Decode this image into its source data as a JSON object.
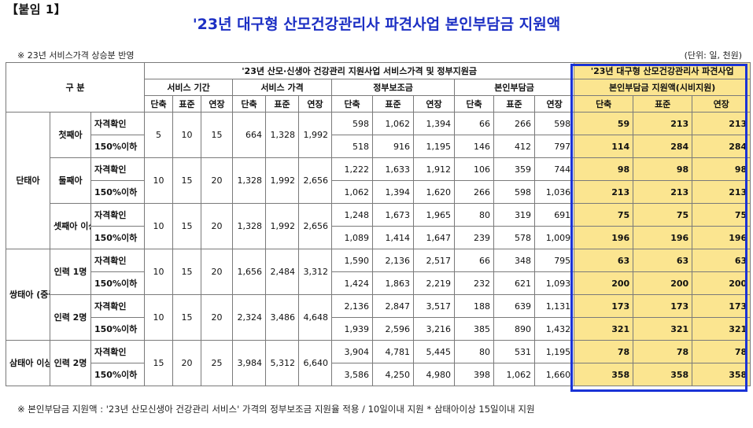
{
  "doc": {
    "attachment_label": "【붙임 1】",
    "title": "'23년 대구형 산모건강관리사 파견사업 본인부담금 지원액",
    "note_top": "※ 23년 서비스가격 상승분 반영",
    "unit": "(단위: 일, 천원)",
    "footer": "※ 본인부담금 지원액 : '23년 산모신생아 건강관리 서비스' 가격의 정부보조금 지원율 적용 / 10일이내 지원  * 삼태아이상 15일이내 지원"
  },
  "header": {
    "category": "구 분",
    "group_title": "'23년 산모·신생아 건강관리 지원사업 서비스가격 및 정부지원금",
    "support_title_line1": "'23년 대구형 산모건강관리사 파견사업",
    "support_title_line2": "본인부담금 지원액(시비지원)",
    "service_period": "서비스 기간",
    "service_price": "서비스 가격",
    "gov_subsidy": "정부보조금",
    "self_pay": "본인부담금",
    "short": "단축",
    "standard": "표준",
    "extended": "연장"
  },
  "labels": {
    "single": "단태아",
    "first": "첫째아",
    "second": "둘째아",
    "third": "셋째아 이상",
    "twin": "쌍태아 (중증+ 단태아)",
    "workers1": "인력 1명",
    "workers2": "인력 2명",
    "triplet": "삼태아 이상 (중증+ 쌍태아 이상)",
    "qualified": "자격확인",
    "below150": "150%이하"
  },
  "rows": [
    {
      "period": [
        "5",
        "10",
        "15"
      ],
      "price": [
        "664",
        "1,328",
        "1,992"
      ],
      "gov": [
        "598",
        "1,062",
        "1,394"
      ],
      "self": [
        "66",
        "266",
        "598"
      ],
      "support": [
        "59",
        "213",
        "213"
      ]
    },
    {
      "gov": [
        "518",
        "916",
        "1,195"
      ],
      "self": [
        "146",
        "412",
        "797"
      ],
      "support": [
        "114",
        "284",
        "284"
      ]
    },
    {
      "period": [
        "10",
        "15",
        "20"
      ],
      "price": [
        "1,328",
        "1,992",
        "2,656"
      ],
      "gov": [
        "1,222",
        "1,633",
        "1,912"
      ],
      "self": [
        "106",
        "359",
        "744"
      ],
      "support": [
        "98",
        "98",
        "98"
      ]
    },
    {
      "gov": [
        "1,062",
        "1,394",
        "1,620"
      ],
      "self": [
        "266",
        "598",
        "1,036"
      ],
      "support": [
        "213",
        "213",
        "213"
      ]
    },
    {
      "period": [
        "10",
        "15",
        "20"
      ],
      "price": [
        "1,328",
        "1,992",
        "2,656"
      ],
      "gov": [
        "1,248",
        "1,673",
        "1,965"
      ],
      "self": [
        "80",
        "319",
        "691"
      ],
      "support": [
        "75",
        "75",
        "75"
      ]
    },
    {
      "gov": [
        "1,089",
        "1,414",
        "1,647"
      ],
      "self": [
        "239",
        "578",
        "1,009"
      ],
      "support": [
        "196",
        "196",
        "196"
      ]
    },
    {
      "period": [
        "10",
        "15",
        "20"
      ],
      "price": [
        "1,656",
        "2,484",
        "3,312"
      ],
      "gov": [
        "1,590",
        "2,136",
        "2,517"
      ],
      "self": [
        "66",
        "348",
        "795"
      ],
      "support": [
        "63",
        "63",
        "63"
      ]
    },
    {
      "gov": [
        "1,424",
        "1,863",
        "2,219"
      ],
      "self": [
        "232",
        "621",
        "1,093"
      ],
      "support": [
        "200",
        "200",
        "200"
      ]
    },
    {
      "period": [
        "10",
        "15",
        "20"
      ],
      "price": [
        "2,324",
        "3,486",
        "4,648"
      ],
      "gov": [
        "2,136",
        "2,847",
        "3,517"
      ],
      "self": [
        "188",
        "639",
        "1,131"
      ],
      "support": [
        "173",
        "173",
        "173"
      ]
    },
    {
      "gov": [
        "1,939",
        "2,596",
        "3,216"
      ],
      "self": [
        "385",
        "890",
        "1,432"
      ],
      "support": [
        "321",
        "321",
        "321"
      ]
    },
    {
      "period": [
        "15",
        "20",
        "25"
      ],
      "price": [
        "3,984",
        "5,312",
        "6,640"
      ],
      "gov": [
        "3,904",
        "4,781",
        "5,445"
      ],
      "self": [
        "80",
        "531",
        "1,195"
      ],
      "support": [
        "78",
        "78",
        "78"
      ]
    },
    {
      "gov": [
        "3,586",
        "4,250",
        "4,980"
      ],
      "self": [
        "398",
        "1,062",
        "1,660"
      ],
      "support": [
        "358",
        "358",
        "358"
      ]
    }
  ],
  "colors": {
    "title": "#1c2fc4",
    "highlight": "#fbe590",
    "box_border": "#1a33d6"
  }
}
